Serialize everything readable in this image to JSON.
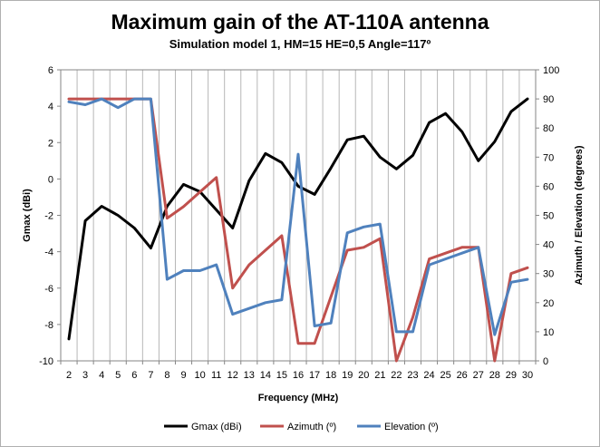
{
  "chart_data": {
    "type": "line",
    "title": "Maximum gain of the AT-110A antenna",
    "subtitle": "Simulation model 1, HM=15 HE=0,5 Angle=117º",
    "xlabel": "Frequency (MHz)",
    "ylabel": "Gmax (dBi)",
    "y2label": "Azimuth / Elevation (degrees)",
    "x": [
      2,
      3,
      4,
      5,
      6,
      7,
      8,
      9,
      10,
      11,
      12,
      13,
      14,
      15,
      16,
      17,
      18,
      19,
      20,
      21,
      22,
      23,
      24,
      25,
      26,
      27,
      28,
      29,
      30
    ],
    "ylim": [
      -10,
      6
    ],
    "yticks": [
      -10,
      -8,
      -6,
      -4,
      -2,
      0,
      2,
      4,
      6
    ],
    "y2lim": [
      0,
      100
    ],
    "y2ticks": [
      0,
      10,
      20,
      30,
      40,
      50,
      60,
      70,
      80,
      90,
      100
    ],
    "grid": "vertical lines at each category; no horizontal grid",
    "legend_position": "bottom",
    "series": [
      {
        "name": "Gmax (dBi)",
        "axis": "left",
        "color": "#000000",
        "values": [
          -8.8,
          -2.3,
          -1.5,
          -2.0,
          -2.7,
          -3.8,
          -1.5,
          -0.3,
          -0.7,
          -1.7,
          -2.7,
          -0.1,
          1.4,
          0.9,
          -0.4,
          -0.85,
          0.6,
          2.15,
          2.35,
          1.2,
          0.55,
          1.3,
          3.1,
          3.6,
          2.6,
          1.0,
          2.05,
          3.7,
          4.4
        ]
      },
      {
        "name": "Azimuth (º)",
        "axis": "right",
        "color": "#c0504d",
        "values": [
          90,
          90,
          90,
          90,
          90,
          90,
          49,
          53,
          58,
          63,
          25,
          33,
          38,
          43,
          6,
          6,
          22,
          38,
          39,
          42,
          0,
          15,
          35,
          37,
          39,
          39,
          0,
          30,
          32
        ]
      },
      {
        "name": "Elevation (º)",
        "axis": "right",
        "color": "#4f81bd",
        "values": [
          89,
          88,
          90,
          87,
          90,
          90,
          28,
          31,
          31,
          33,
          16,
          18,
          20,
          21,
          71,
          12,
          13,
          44,
          46,
          47,
          10,
          10,
          33,
          35,
          37,
          39,
          9,
          27,
          28
        ]
      }
    ]
  }
}
